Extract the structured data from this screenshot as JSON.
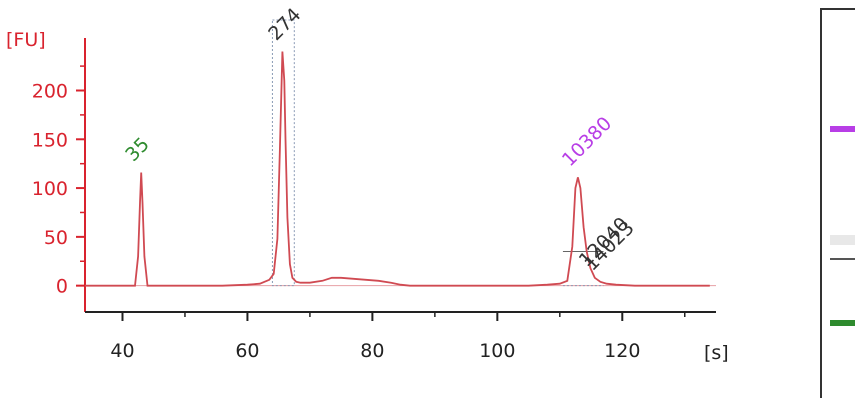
{
  "chart_data": {
    "type": "line",
    "title": "",
    "xlabel": "",
    "ylabel": "",
    "x_unit": "[s]",
    "y_unit": "[FU]",
    "xlim": [
      34,
      135
    ],
    "ylim": [
      -27,
      262
    ],
    "xticks": [
      40,
      60,
      80,
      100,
      120
    ],
    "yticks": [
      0,
      50,
      100,
      150,
      200
    ],
    "grid": false,
    "legend": "none",
    "series_color": "#d04a52",
    "series": [
      {
        "x": [
          34,
          42.0,
          42.5,
          42.8,
          43.0,
          43.2,
          43.5,
          44.0,
          48,
          52,
          56,
          60,
          62,
          63.5,
          64.2,
          64.8,
          65.2,
          65.6,
          65.9,
          66.1,
          66.4,
          66.8,
          67.2,
          67.8,
          68.5,
          70,
          72,
          73.5,
          75,
          77,
          79,
          81,
          83,
          84.5,
          86,
          90,
          95,
          100,
          105,
          108,
          110,
          111.2,
          112.0,
          112.5,
          112.9,
          113.3,
          113.8,
          114.3,
          114.9,
          115.6,
          116.5,
          117.5,
          119,
          122,
          126,
          130,
          134
        ],
        "y": [
          0,
          0,
          30,
          85,
          116,
          85,
          30,
          0,
          0,
          0,
          0,
          1,
          2,
          6,
          12,
          48,
          140,
          240,
          210,
          150,
          70,
          22,
          8,
          4,
          3,
          3,
          5,
          8,
          8,
          7,
          6,
          5,
          3,
          1,
          0,
          0,
          0,
          0,
          0,
          1,
          2,
          5,
          40,
          100,
          111,
          100,
          60,
          35,
          18,
          8,
          4,
          2,
          1,
          0,
          0,
          0,
          0
        ]
      }
    ],
    "annotations": [
      {
        "text": "35",
        "x": 43.0,
        "y": 116,
        "color": "#2e8b2e"
      },
      {
        "text": "274",
        "x": 65.9,
        "y": 240,
        "color": "#333333"
      },
      {
        "text": "10380",
        "x": 112.9,
        "y": 111,
        "color": "#b83ee6"
      },
      {
        "text": "12040",
        "x": 115.6,
        "y": 8,
        "color": "#333333"
      },
      {
        "text": "14023",
        "x": 116.5,
        "y": 4,
        "color": "#333333"
      }
    ],
    "peak_markers": [
      {
        "x_start": 64.0,
        "x_end": 67.5,
        "style": "dotted-box"
      },
      {
        "x_start": 110.5,
        "x_end": 117.0,
        "style": "baseline"
      }
    ]
  },
  "gel_lane": {
    "bands": [
      {
        "color": "#b83ee6",
        "level": 0.3
      },
      {
        "color": "#e8e8e8",
        "level": 0.58
      },
      {
        "color": "#555555",
        "level": 0.64
      },
      {
        "color": "#2e8b2e",
        "level": 0.8
      }
    ]
  }
}
